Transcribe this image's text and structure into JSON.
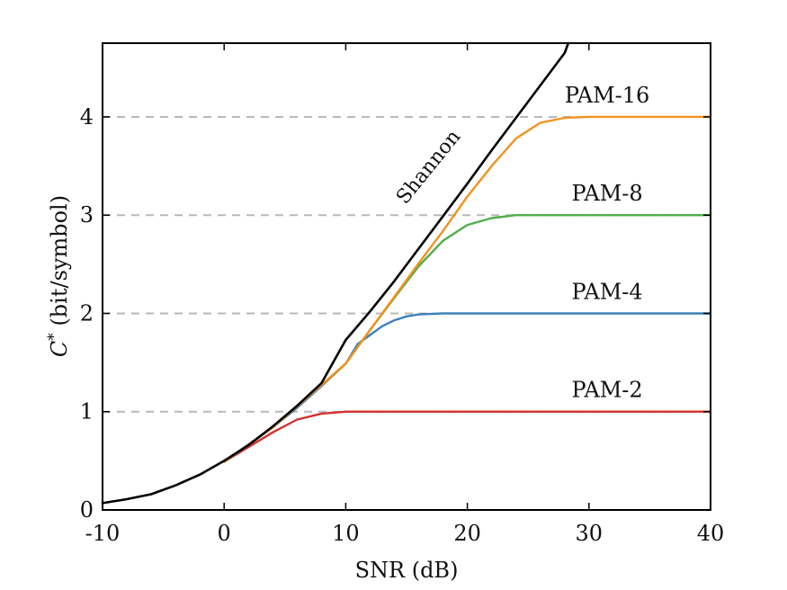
{
  "chart_data": {
    "type": "line",
    "xlabel": "SNR (dB)",
    "ylabel": "C* (bit/symbol)",
    "ylabel_main": "C",
    "ylabel_sup": "*",
    "ylabel_rest": " (bit/symbol)",
    "xlim": [
      -10,
      40
    ],
    "ylim": [
      0,
      4.75
    ],
    "xticks": [
      -10,
      0,
      10,
      20,
      30,
      40
    ],
    "yticks": [
      0,
      1,
      2,
      3,
      4
    ],
    "reference_lines": [
      1,
      2,
      3,
      4
    ],
    "series": [
      {
        "name": "Shannon",
        "color": "#000000",
        "x": [
          -10,
          -8,
          -6,
          -4,
          -2,
          0,
          2,
          4,
          6,
          8,
          10,
          12,
          14,
          16,
          18,
          20,
          22,
          24,
          26,
          28,
          28.3
        ],
        "y": [
          0.07,
          0.11,
          0.16,
          0.25,
          0.36,
          0.5,
          0.66,
          0.85,
          1.06,
          1.29,
          1.73,
          2.02,
          2.33,
          2.66,
          2.99,
          3.32,
          3.66,
          3.99,
          4.32,
          4.65,
          4.75
        ]
      },
      {
        "name": "PAM-2",
        "color": "#d62f2f",
        "x": [
          0,
          2,
          4,
          6,
          8,
          10,
          12,
          16,
          40
        ],
        "y": [
          0.49,
          0.64,
          0.79,
          0.92,
          0.98,
          1.0,
          1.0,
          1.0,
          1.0
        ]
      },
      {
        "name": "PAM-4",
        "color": "#3f80b8",
        "x": [
          0,
          2,
          4,
          6,
          8,
          10,
          11,
          12,
          13,
          14,
          15,
          16,
          18,
          20,
          40
        ],
        "y": [
          0.49,
          0.66,
          0.84,
          1.04,
          1.26,
          1.49,
          1.69,
          1.78,
          1.87,
          1.93,
          1.97,
          1.99,
          2.0,
          2.0,
          2.0
        ]
      },
      {
        "name": "PAM-8",
        "color": "#4faf4a",
        "x": [
          0,
          4,
          8,
          10,
          12,
          14,
          16,
          18,
          20,
          22,
          24,
          26,
          40
        ],
        "y": [
          0.49,
          0.84,
          1.27,
          1.49,
          1.83,
          2.16,
          2.48,
          2.74,
          2.9,
          2.97,
          3.0,
          3.0,
          3.0
        ]
      },
      {
        "name": "PAM-16",
        "color": "#f2921f",
        "x": [
          0,
          4,
          8,
          10,
          12,
          14,
          16,
          18,
          20,
          22,
          24,
          26,
          28,
          30,
          32,
          40
        ],
        "y": [
          0.49,
          0.84,
          1.27,
          1.49,
          1.83,
          2.17,
          2.51,
          2.84,
          3.19,
          3.5,
          3.78,
          3.94,
          3.99,
          4.0,
          4.0,
          4.0
        ]
      }
    ],
    "labels": [
      {
        "text": "PAM-16",
        "x": 31.5,
        "y": 4.22
      },
      {
        "text": "PAM-8",
        "x": 31.5,
        "y": 3.22
      },
      {
        "text": "PAM-4",
        "x": 31.5,
        "y": 2.22
      },
      {
        "text": "PAM-2",
        "x": 31.5,
        "y": 1.22
      }
    ],
    "shannon_label": {
      "text": "Shannon",
      "x": 17.2,
      "y": 3.45
    }
  }
}
